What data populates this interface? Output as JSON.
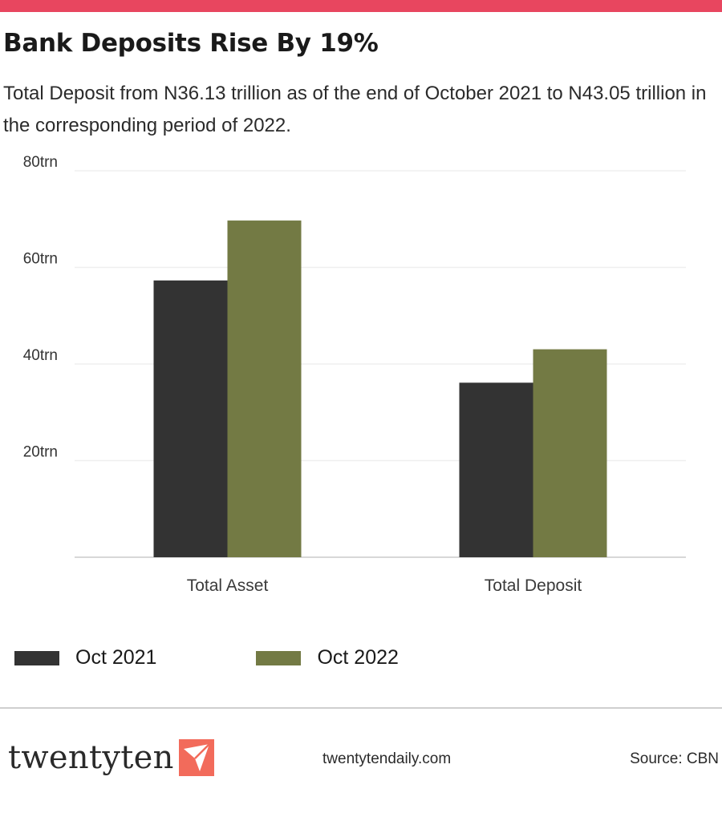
{
  "header": {
    "title": "Bank Deposits Rise By 19%",
    "subtitle": "Total Deposit from N36.13 trillion as of the end of October 2021 to N43.05 trillion in the corresponding period of 2022.",
    "accent_color": "#e8465f"
  },
  "chart_data": {
    "type": "bar",
    "categories": [
      "Total Asset",
      "Total Deposit"
    ],
    "series": [
      {
        "name": "Oct 2021",
        "color": "#333333",
        "values": [
          57.3,
          36.13
        ]
      },
      {
        "name": "Oct 2022",
        "color": "#737a44",
        "values": [
          69.7,
          43.05
        ]
      }
    ],
    "yticks": [
      {
        "value": 20,
        "label": "20trn"
      },
      {
        "value": 40,
        "label": "40trn"
      },
      {
        "value": 60,
        "label": "60trn"
      },
      {
        "value": 80,
        "label": "80trn"
      }
    ],
    "ylim": [
      0,
      80
    ],
    "grid": true,
    "legend_position": "bottom-left"
  },
  "footer": {
    "logo_text": "twentyten",
    "logo_icon": "paper-plane-icon",
    "site": "twentytendaily.com",
    "source": "Source: CBN"
  }
}
